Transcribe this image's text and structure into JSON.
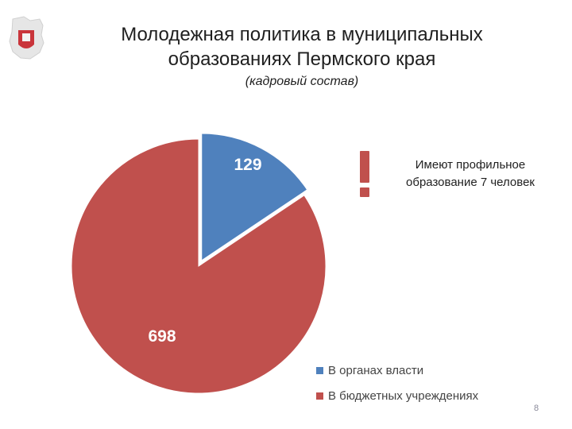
{
  "title_line1": "Молодежная политика в муниципальных",
  "title_line2": "образованиях Пермского края",
  "subtitle": "(кадровый состав)",
  "note_line1": "Имеют профильное",
  "note_line2": "образование 7 человек",
  "page_number": "8",
  "colors": {
    "blue": "#4f81bd",
    "red": "#c0504d",
    "exclamation": "#c0504d"
  },
  "chart_data": {
    "type": "pie",
    "series": [
      {
        "name": "В органах власти",
        "value": 129,
        "label": "129",
        "color": "#4f81bd",
        "exploded": true
      },
      {
        "name": "В бюджетных учреждениях",
        "value": 698,
        "label": "698",
        "color": "#c0504d",
        "exploded": false
      }
    ],
    "legend_position": "bottom-right"
  }
}
